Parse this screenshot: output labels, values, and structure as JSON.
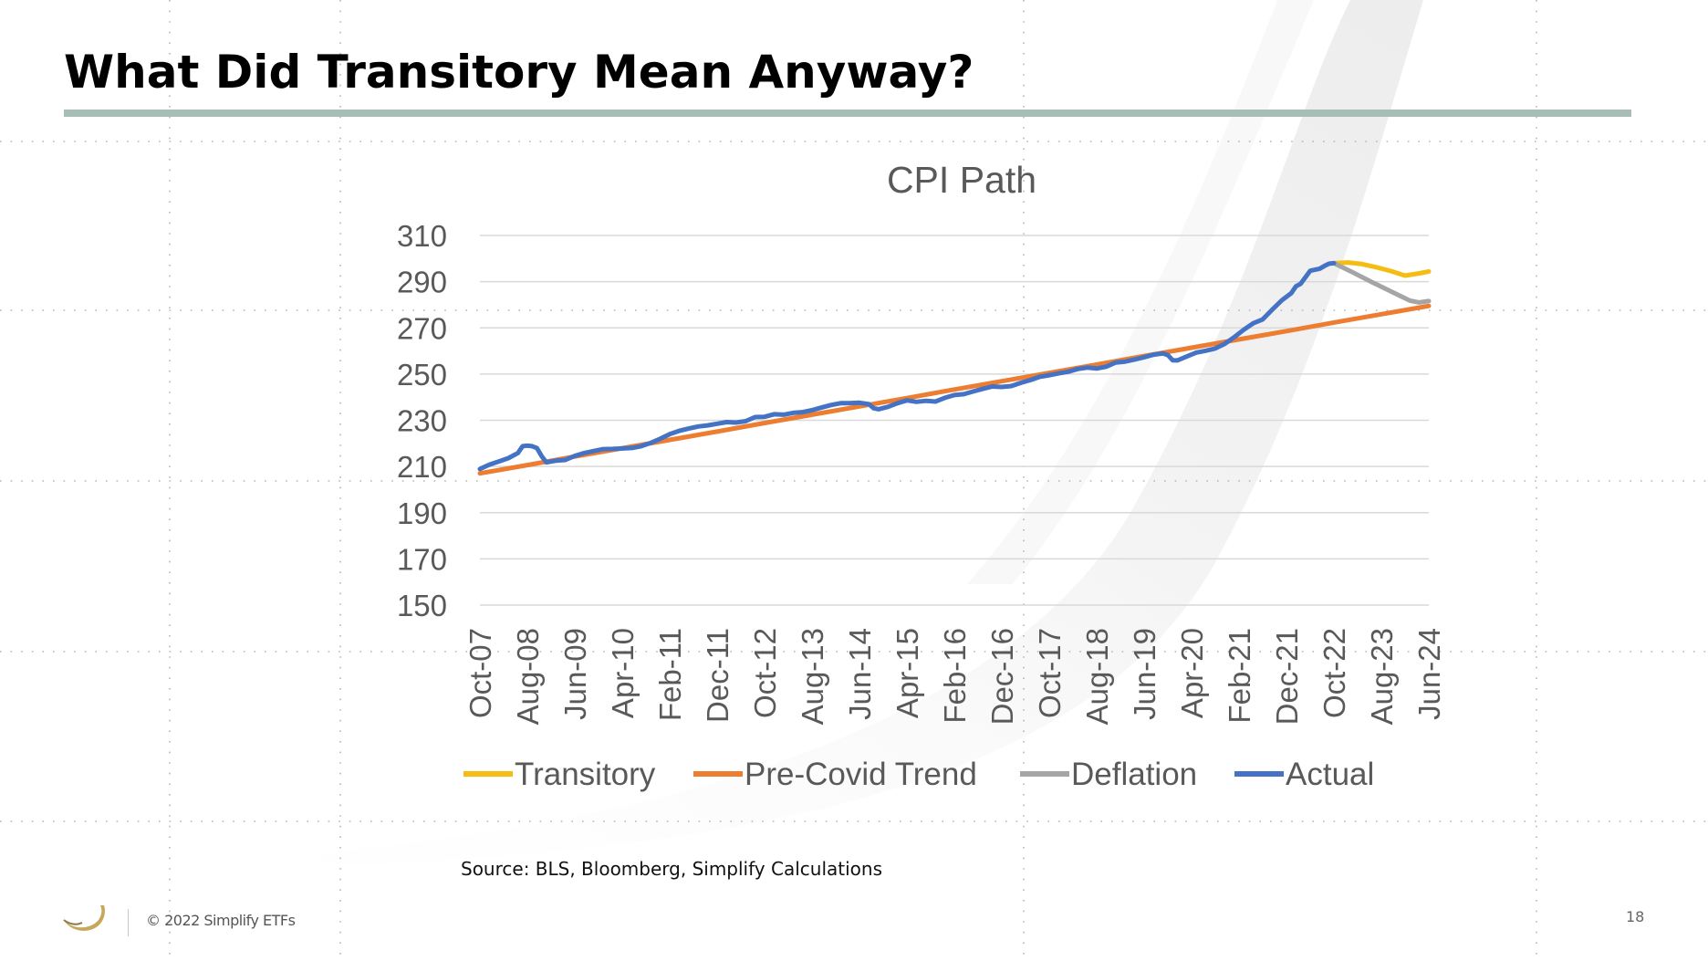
{
  "slide": {
    "title": "What Did Transitory Mean Anyway?",
    "source": "Source: BLS, Bloomberg, Simplify Calculations",
    "copyright": "© 2022 Simplify ETFs",
    "page_number": "18"
  },
  "colors": {
    "transitory": "#f5bd14",
    "trend": "#ed7d31",
    "deflation": "#a5a5a5",
    "actual": "#4472c4",
    "accent_rule": "#a8bdb6",
    "logo": "#c5a85a"
  },
  "chart_data": {
    "type": "line",
    "title": "CPI Path",
    "xlabel": "",
    "ylabel": "",
    "ylim": [
      150,
      310
    ],
    "yticks": [
      150,
      170,
      190,
      210,
      230,
      250,
      270,
      290,
      310
    ],
    "grid": true,
    "legend_position": "bottom",
    "x_range_months": [
      0,
      200
    ],
    "categories": [
      "Oct-07",
      "Aug-08",
      "Jun-09",
      "Apr-10",
      "Feb-11",
      "Dec-11",
      "Oct-12",
      "Aug-13",
      "Jun-14",
      "Apr-15",
      "Feb-16",
      "Dec-16",
      "Oct-17",
      "Aug-18",
      "Jun-19",
      "Apr-20",
      "Feb-21",
      "Dec-21",
      "Oct-22",
      "Aug-23",
      "Jun-24"
    ],
    "series": [
      {
        "name": "Transitory",
        "color_key": "transitory",
        "points": [
          [
            180,
            298.0
          ],
          [
            183,
            298.3
          ],
          [
            186,
            297.6
          ],
          [
            189,
            296.2
          ],
          [
            192,
            294.6
          ],
          [
            195,
            292.6
          ],
          [
            198,
            293.6
          ],
          [
            200,
            294.4
          ]
        ]
      },
      {
        "name": "Pre-Covid Trend",
        "color_key": "trend",
        "points": [
          [
            0,
            207.0
          ],
          [
            10,
            210.6
          ],
          [
            20,
            214.3
          ],
          [
            30,
            217.9
          ],
          [
            40,
            221.5
          ],
          [
            50,
            225.1
          ],
          [
            60,
            228.8
          ],
          [
            70,
            232.4
          ],
          [
            80,
            236.0
          ],
          [
            90,
            239.6
          ],
          [
            100,
            243.3
          ],
          [
            110,
            246.9
          ],
          [
            120,
            250.5
          ],
          [
            130,
            254.1
          ],
          [
            140,
            257.8
          ],
          [
            150,
            261.4
          ],
          [
            160,
            265.0
          ],
          [
            170,
            268.6
          ],
          [
            180,
            272.3
          ],
          [
            190,
            275.9
          ],
          [
            200,
            279.5
          ]
        ]
      },
      {
        "name": "Deflation",
        "color_key": "deflation",
        "points": [
          [
            180,
            298.0
          ],
          [
            184,
            294.0
          ],
          [
            188,
            289.8
          ],
          [
            192,
            285.8
          ],
          [
            196,
            281.8
          ],
          [
            198,
            281.0
          ],
          [
            200,
            281.6
          ]
        ]
      },
      {
        "name": "Actual",
        "color_key": "actual",
        "points": [
          [
            0,
            208.9
          ],
          [
            2,
            210.8
          ],
          [
            4,
            212.2
          ],
          [
            6,
            213.6
          ],
          [
            8,
            215.8
          ],
          [
            9,
            218.8
          ],
          [
            10,
            219.0
          ],
          [
            11,
            218.8
          ],
          [
            12,
            218.0
          ],
          [
            13,
            214.5
          ],
          [
            14,
            211.8
          ],
          [
            16,
            212.5
          ],
          [
            18,
            212.8
          ],
          [
            20,
            214.6
          ],
          [
            22,
            215.8
          ],
          [
            24,
            216.7
          ],
          [
            26,
            217.5
          ],
          [
            28,
            217.6
          ],
          [
            30,
            217.8
          ],
          [
            32,
            218.0
          ],
          [
            34,
            218.8
          ],
          [
            36,
            220.2
          ],
          [
            38,
            222.0
          ],
          [
            40,
            224.0
          ],
          [
            42,
            225.4
          ],
          [
            44,
            226.4
          ],
          [
            46,
            227.3
          ],
          [
            48,
            227.8
          ],
          [
            50,
            228.5
          ],
          [
            52,
            229.2
          ],
          [
            54,
            229.0
          ],
          [
            56,
            229.6
          ],
          [
            58,
            231.4
          ],
          [
            60,
            231.5
          ],
          [
            62,
            232.6
          ],
          [
            64,
            232.4
          ],
          [
            66,
            233.2
          ],
          [
            68,
            233.5
          ],
          [
            70,
            234.4
          ],
          [
            72,
            235.5
          ],
          [
            74,
            236.6
          ],
          [
            76,
            237.4
          ],
          [
            78,
            237.4
          ],
          [
            80,
            237.6
          ],
          [
            82,
            237.0
          ],
          [
            83,
            235.2
          ],
          [
            84,
            234.8
          ],
          [
            86,
            235.8
          ],
          [
            88,
            237.4
          ],
          [
            90,
            238.6
          ],
          [
            92,
            238.0
          ],
          [
            94,
            238.4
          ],
          [
            96,
            238.1
          ],
          [
            98,
            239.7
          ],
          [
            100,
            240.9
          ],
          [
            102,
            241.3
          ],
          [
            104,
            242.5
          ],
          [
            106,
            243.6
          ],
          [
            108,
            244.6
          ],
          [
            110,
            244.4
          ],
          [
            112,
            244.8
          ],
          [
            114,
            246.2
          ],
          [
            116,
            247.4
          ],
          [
            118,
            248.8
          ],
          [
            120,
            249.5
          ],
          [
            122,
            250.3
          ],
          [
            124,
            251.0
          ],
          [
            126,
            252.2
          ],
          [
            128,
            252.8
          ],
          [
            130,
            252.4
          ],
          [
            132,
            253.2
          ],
          [
            134,
            255.0
          ],
          [
            136,
            255.4
          ],
          [
            138,
            256.3
          ],
          [
            140,
            257.3
          ],
          [
            142,
            258.4
          ],
          [
            144,
            258.9
          ],
          [
            145,
            258.2
          ],
          [
            146,
            256.0
          ],
          [
            147,
            255.9
          ],
          [
            149,
            257.6
          ],
          [
            151,
            259.3
          ],
          [
            153,
            260.1
          ],
          [
            155,
            261.1
          ],
          [
            157,
            263.1
          ],
          [
            159,
            266.0
          ],
          [
            161,
            269.2
          ],
          [
            163,
            272.0
          ],
          [
            165,
            273.7
          ],
          [
            167,
            277.9
          ],
          [
            169,
            281.9
          ],
          [
            171,
            285.0
          ],
          [
            172,
            288.0
          ],
          [
            173,
            289.1
          ],
          [
            175,
            294.7
          ],
          [
            177,
            295.6
          ],
          [
            178,
            296.8
          ],
          [
            179,
            297.8
          ],
          [
            180,
            298.0
          ]
        ]
      }
    ]
  }
}
